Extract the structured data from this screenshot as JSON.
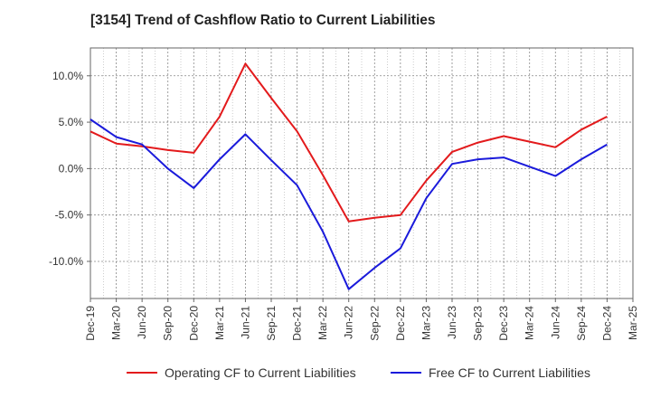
{
  "chart_data": {
    "type": "line",
    "title": "[3154]  Trend of Cashflow Ratio to Current Liabilities",
    "xlabel": "",
    "ylabel": "",
    "categories": [
      "Dec-19",
      "Mar-20",
      "Jun-20",
      "Sep-20",
      "Dec-20",
      "Mar-21",
      "Jun-21",
      "Sep-21",
      "Dec-21",
      "Mar-22",
      "Jun-22",
      "Sep-22",
      "Dec-22",
      "Mar-23",
      "Jun-23",
      "Sep-23",
      "Dec-23",
      "Mar-24",
      "Jun-24",
      "Sep-24",
      "Dec-24",
      "Mar-25"
    ],
    "y_ticks": [
      10.0,
      5.0,
      0.0,
      -5.0,
      -10.0
    ],
    "y_tick_labels": [
      "10.0%",
      "5.0%",
      "0.0%",
      "-5.0%",
      "-10.0%"
    ],
    "ylim": [
      -14.0,
      13.0
    ],
    "grid": true,
    "legend_position": "bottom",
    "series": [
      {
        "name": "Operating CF to Current Liabilities",
        "color": "#e31a1c",
        "values": [
          4.0,
          2.7,
          2.4,
          2.0,
          1.7,
          5.6,
          11.3,
          7.6,
          4.0,
          -0.7,
          -5.7,
          -5.3,
          -5.0,
          -1.3,
          1.8,
          2.8,
          3.5,
          2.9,
          2.3,
          4.2,
          5.6,
          null
        ]
      },
      {
        "name": "Free CF to Current Liabilities",
        "color": "#1a1adb",
        "values": [
          5.3,
          3.4,
          2.6,
          0.0,
          -2.1,
          1.0,
          3.7,
          0.9,
          -1.8,
          -6.8,
          -13.0,
          -10.7,
          -8.6,
          -3.2,
          0.5,
          1.0,
          1.2,
          0.2,
          -0.8,
          1.0,
          2.6,
          null
        ]
      }
    ]
  }
}
